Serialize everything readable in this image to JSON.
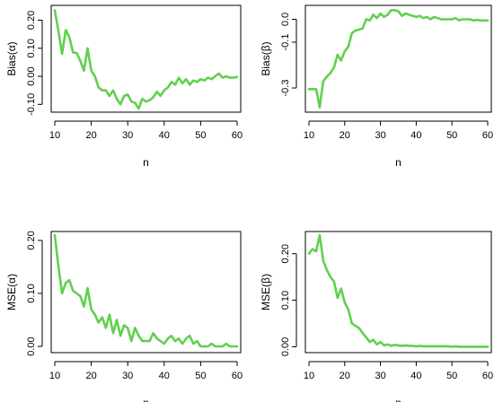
{
  "chart_data": [
    {
      "type": "line",
      "xlabel": "n",
      "ylabel": "Bias(α)",
      "xlim": [
        10,
        60
      ],
      "ylim": [
        -0.115,
        0.24
      ],
      "xticks": [
        10,
        20,
        30,
        40,
        50,
        60
      ],
      "xtick_labels": [
        "10",
        "20",
        "30",
        "40",
        "50",
        "60"
      ],
      "yticks": [
        -0.1,
        0.0,
        0.1,
        0.2
      ],
      "ytick_labels": [
        "-0.10",
        "0.00",
        "0.10",
        "0.20"
      ],
      "x": [
        10,
        11,
        12,
        13,
        14,
        15,
        16,
        17,
        18,
        19,
        20,
        21,
        22,
        23,
        24,
        25,
        26,
        27,
        28,
        29,
        30,
        31,
        32,
        33,
        34,
        35,
        36,
        37,
        38,
        39,
        40,
        41,
        42,
        43,
        44,
        45,
        46,
        47,
        48,
        49,
        50,
        51,
        52,
        53,
        54,
        55,
        56,
        57,
        58,
        59,
        60
      ],
      "series": [
        {
          "values": [
            0.235,
            0.16,
            0.08,
            0.165,
            0.14,
            0.085,
            0.083,
            0.055,
            0.02,
            0.1,
            0.02,
            0.0,
            -0.04,
            -0.05,
            -0.05,
            -0.07,
            -0.05,
            -0.08,
            -0.1,
            -0.07,
            -0.065,
            -0.09,
            -0.095,
            -0.115,
            -0.08,
            -0.09,
            -0.085,
            -0.075,
            -0.055,
            -0.07,
            -0.05,
            -0.04,
            -0.02,
            -0.03,
            -0.005,
            -0.025,
            -0.01,
            -0.03,
            -0.015,
            -0.02,
            -0.01,
            -0.015,
            -0.005,
            -0.01,
            0.0,
            0.01,
            -0.005,
            0.0,
            -0.005,
            -0.005,
            -0.002
          ]
        }
      ],
      "color": "#61d04f"
    },
    {
      "type": "line",
      "xlabel": "n",
      "ylabel": "Bias(β)",
      "xlim": [
        10,
        60
      ],
      "ylim": [
        -0.39,
        0.045
      ],
      "xticks": [
        10,
        20,
        30,
        40,
        50,
        60
      ],
      "xtick_labels": [
        "10",
        "20",
        "30",
        "40",
        "50",
        "60"
      ],
      "yticks": [
        -0.3,
        -0.1,
        0.0
      ],
      "ytick_labels": [
        "-0.3",
        "-0.1",
        "0.0"
      ],
      "x": [
        10,
        11,
        12,
        13,
        14,
        15,
        16,
        17,
        18,
        19,
        20,
        21,
        22,
        23,
        24,
        25,
        26,
        27,
        28,
        29,
        30,
        31,
        32,
        33,
        34,
        35,
        36,
        37,
        38,
        39,
        40,
        41,
        42,
        43,
        44,
        45,
        46,
        47,
        48,
        49,
        50,
        51,
        52,
        53,
        54,
        55,
        56,
        57,
        58,
        59,
        60
      ],
      "series": [
        {
          "values": [
            -0.305,
            -0.305,
            -0.305,
            -0.385,
            -0.27,
            -0.25,
            -0.235,
            -0.21,
            -0.155,
            -0.18,
            -0.14,
            -0.12,
            -0.06,
            -0.05,
            -0.045,
            -0.04,
            0.0,
            -0.005,
            0.02,
            0.005,
            0.025,
            0.01,
            0.02,
            0.04,
            0.04,
            0.035,
            0.015,
            0.025,
            0.02,
            0.015,
            0.01,
            0.015,
            0.005,
            0.01,
            0.0,
            0.01,
            0.005,
            0.0,
            0.0,
            0.0,
            0.0,
            0.005,
            -0.005,
            0.0,
            0.0,
            0.0,
            -0.005,
            -0.003,
            -0.005,
            -0.005,
            -0.005
          ]
        }
      ],
      "color": "#61d04f"
    },
    {
      "type": "line",
      "xlabel": "n",
      "ylabel": "MSE(α)",
      "xlim": [
        10,
        60
      ],
      "ylim": [
        -0.005,
        0.21
      ],
      "xticks": [
        10,
        20,
        30,
        40,
        50,
        60
      ],
      "xtick_labels": [
        "10",
        "20",
        "30",
        "40",
        "50",
        "60"
      ],
      "yticks": [
        0.0,
        0.1,
        0.2
      ],
      "ytick_labels": [
        "0.00",
        "0.10",
        "0.20"
      ],
      "x": [
        10,
        11,
        12,
        13,
        14,
        15,
        16,
        17,
        18,
        19,
        20,
        21,
        22,
        23,
        24,
        25,
        26,
        27,
        28,
        29,
        30,
        31,
        32,
        33,
        34,
        35,
        36,
        37,
        38,
        39,
        40,
        41,
        42,
        43,
        44,
        45,
        46,
        47,
        48,
        49,
        50,
        51,
        52,
        53,
        54,
        55,
        56,
        57,
        58,
        59,
        60
      ],
      "series": [
        {
          "values": [
            0.21,
            0.15,
            0.1,
            0.12,
            0.125,
            0.105,
            0.1,
            0.095,
            0.075,
            0.11,
            0.07,
            0.06,
            0.045,
            0.055,
            0.035,
            0.06,
            0.025,
            0.05,
            0.02,
            0.04,
            0.035,
            0.01,
            0.035,
            0.02,
            0.01,
            0.01,
            0.01,
            0.025,
            0.015,
            0.01,
            0.005,
            0.015,
            0.02,
            0.01,
            0.015,
            0.005,
            0.015,
            0.02,
            0.005,
            0.01,
            0.0,
            0.0,
            0.0,
            0.005,
            0.0,
            0.0,
            0.0,
            0.005,
            0.0,
            0.0,
            0.0
          ]
        }
      ],
      "color": "#61d04f"
    },
    {
      "type": "line",
      "xlabel": "n",
      "ylabel": "MSE(β)",
      "xlim": [
        10,
        60
      ],
      "ylim": [
        -0.005,
        0.24
      ],
      "xticks": [
        10,
        20,
        30,
        40,
        50,
        60
      ],
      "xtick_labels": [
        "10",
        "20",
        "30",
        "40",
        "50",
        "60"
      ],
      "yticks": [
        0.0,
        0.1,
        0.2
      ],
      "ytick_labels": [
        "0.00",
        "0.10",
        "0.20"
      ],
      "x": [
        10,
        11,
        12,
        13,
        14,
        15,
        16,
        17,
        18,
        19,
        20,
        21,
        22,
        23,
        24,
        25,
        26,
        27,
        28,
        29,
        30,
        31,
        32,
        33,
        34,
        35,
        36,
        37,
        38,
        39,
        40,
        41,
        42,
        43,
        44,
        45,
        46,
        47,
        48,
        49,
        50,
        51,
        52,
        53,
        54,
        55,
        56,
        57,
        58,
        59,
        60
      ],
      "series": [
        {
          "values": [
            0.2,
            0.21,
            0.205,
            0.24,
            0.185,
            0.165,
            0.15,
            0.14,
            0.105,
            0.125,
            0.095,
            0.08,
            0.05,
            0.045,
            0.04,
            0.03,
            0.02,
            0.01,
            0.015,
            0.005,
            0.01,
            0.003,
            0.005,
            0.002,
            0.004,
            0.003,
            0.002,
            0.003,
            0.002,
            0.002,
            0.001,
            0.002,
            0.001,
            0.001,
            0.001,
            0.001,
            0.001,
            0.001,
            0.001,
            0.001,
            0.0,
            0.001,
            0.0,
            0.0,
            0.0,
            0.0,
            0.0,
            0.0,
            0.0,
            0.0,
            0.0
          ]
        }
      ],
      "color": "#61d04f"
    }
  ]
}
